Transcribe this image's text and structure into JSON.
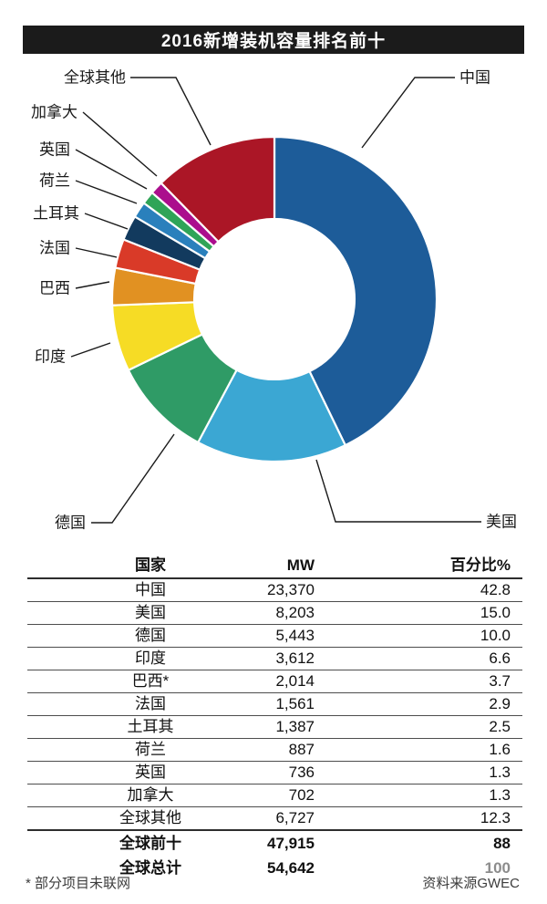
{
  "title": "2016新增装机容量排名前十",
  "accent_colors": {
    "title_bar_bg": "#1b1b1b",
    "title_text": "#ffffff"
  },
  "chart_data": {
    "type": "pie",
    "subtype": "donut",
    "title": "2016新增装机容量排名前十",
    "labels": [
      "中国",
      "美国",
      "德国",
      "印度",
      "巴西",
      "法国",
      "土耳其",
      "荷兰",
      "英国",
      "加拿大",
      "全球其他"
    ],
    "series": [
      {
        "name": "MW",
        "values": [
          23370,
          8203,
          5443,
          3612,
          2014,
          1561,
          1387,
          887,
          736,
          702,
          6727
        ]
      },
      {
        "name": "百分比%",
        "values": [
          42.8,
          15.0,
          10.0,
          6.6,
          3.7,
          2.9,
          2.5,
          1.6,
          1.3,
          1.3,
          12.3
        ]
      }
    ],
    "colors": [
      "#1d5c99",
      "#3ba7d3",
      "#2f9b66",
      "#f6dc25",
      "#e19122",
      "#d93a28",
      "#123a5e",
      "#2a80bc",
      "#2fa457",
      "#ab0e8d",
      "#ab1626"
    ],
    "start_angle": "12-o'clock, clockwise",
    "legend_position": "callout-labels",
    "grid": false
  },
  "table": {
    "columns": [
      "国家",
      "MW",
      "百分比%"
    ],
    "rows": [
      {
        "country": "中国",
        "mw": "23,370",
        "pct": "42.8"
      },
      {
        "country": "美国",
        "mw": "8,203",
        "pct": "15.0"
      },
      {
        "country": "德国",
        "mw": "5,443",
        "pct": "10.0"
      },
      {
        "country": "印度",
        "mw": "3,612",
        "pct": "6.6"
      },
      {
        "country": "巴西*",
        "mw": "2,014",
        "pct": "3.7"
      },
      {
        "country": "法国",
        "mw": "1,561",
        "pct": "2.9"
      },
      {
        "country": "土耳其",
        "mw": "1,387",
        "pct": "2.5"
      },
      {
        "country": "荷兰",
        "mw": "887",
        "pct": "1.6"
      },
      {
        "country": "英国",
        "mw": "736",
        "pct": "1.3"
      },
      {
        "country": "加拿大",
        "mw": "702",
        "pct": "1.3"
      },
      {
        "country": "全球其他",
        "mw": "6,727",
        "pct": "12.3"
      }
    ],
    "totals": [
      {
        "label": "全球前十",
        "mw": "47,915",
        "pct": "88"
      },
      {
        "label": "全球总计",
        "mw": "54,642",
        "pct": "100"
      }
    ]
  },
  "footnote": "* 部分项目未联网",
  "source": "资料来源GWEC"
}
